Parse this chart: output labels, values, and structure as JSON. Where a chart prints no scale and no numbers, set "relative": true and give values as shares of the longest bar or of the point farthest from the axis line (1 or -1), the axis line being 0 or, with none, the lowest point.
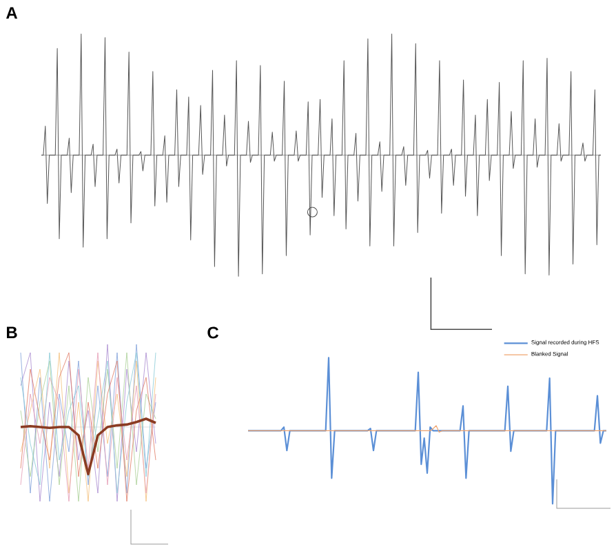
{
  "chart_data": [
    {
      "type": "line",
      "title": "A",
      "relative": true,
      "tick_labels": false,
      "categories": [
        null,
        null,
        null,
        null,
        null,
        null,
        null,
        null,
        null,
        null,
        null,
        null,
        null,
        null,
        null,
        null,
        null,
        null,
        null,
        null,
        null,
        null,
        null,
        null,
        null,
        null,
        null,
        null,
        null,
        null,
        null,
        null,
        null,
        null,
        null,
        null,
        null,
        null,
        null,
        null,
        null,
        null,
        null,
        null,
        null,
        null,
        null,
        null,
        null,
        null,
        null,
        null,
        null,
        null,
        null,
        null,
        null,
        null,
        null,
        null,
        null,
        null,
        null,
        null,
        null,
        null,
        null,
        null,
        null,
        null,
        null,
        null,
        null,
        null,
        null,
        null,
        null,
        null,
        null,
        null,
        null,
        null,
        null,
        null,
        null,
        null,
        null,
        null,
        null,
        null,
        null,
        null,
        null,
        null,
        null,
        null,
        null,
        null,
        null,
        null,
        null,
        null,
        null,
        null,
        null,
        null,
        null,
        null,
        null,
        null,
        null,
        null,
        null,
        null,
        null,
        null,
        null,
        null,
        null,
        null,
        null,
        null,
        null,
        null,
        null,
        null,
        null,
        null,
        null,
        null,
        null,
        null,
        null,
        null,
        null,
        null,
        null,
        null,
        null,
        null,
        null,
        null,
        null,
        null,
        null,
        null,
        null,
        null,
        null,
        null,
        null,
        null,
        null,
        null,
        null,
        null,
        null,
        null,
        null,
        null,
        null,
        null,
        null,
        null,
        null,
        null,
        null,
        null,
        null,
        null,
        null,
        null,
        null,
        null,
        null,
        null,
        null,
        null,
        null,
        null,
        null,
        null,
        null,
        null,
        null,
        null,
        null,
        null,
        null,
        null,
        null,
        null,
        null,
        null,
        null,
        null,
        null,
        null,
        null,
        null,
        null,
        null,
        null,
        null,
        null,
        null,
        null,
        null,
        null,
        null,
        null,
        null,
        null,
        null,
        null,
        null,
        null,
        null,
        null,
        null,
        null,
        null,
        null,
        null,
        null,
        null,
        null,
        null,
        null,
        null,
        null,
        null,
        null,
        null,
        null,
        null,
        null,
        null,
        null,
        null,
        null,
        null,
        null,
        null,
        null,
        null,
        null,
        null,
        null,
        null,
        null,
        null,
        null,
        null,
        null,
        null,
        null,
        null,
        null,
        null,
        null,
        null,
        null,
        null,
        null,
        null,
        null,
        null,
        null,
        null,
        null,
        null,
        null,
        null,
        null,
        null,
        null,
        null,
        null,
        null,
        null,
        null
      ],
      "series": [
        {
          "color": "#555555",
          "values": [
            0,
            0,
            0.24,
            -0.4,
            0,
            0,
            0,
            0,
            0.88,
            -0.69,
            0,
            0,
            0,
            0,
            0.14,
            -0.31,
            0,
            0,
            0,
            0,
            1.0,
            -0.76,
            0,
            0,
            0,
            0,
            0.09,
            -0.26,
            0,
            0,
            0,
            0,
            0.97,
            -0.69,
            0,
            0,
            0,
            0,
            0.05,
            -0.23,
            0,
            0,
            0,
            0,
            0.85,
            -0.56,
            0,
            0,
            0,
            0,
            0.03,
            -0.13,
            0,
            0,
            0,
            0,
            0.69,
            -0.42,
            0,
            0,
            0,
            0,
            0.16,
            -0.39,
            0,
            0,
            0,
            0,
            0.54,
            -0.26,
            0,
            0,
            0,
            0,
            0.48,
            -0.7,
            0,
            0,
            0,
            0,
            0.41,
            -0.16,
            0,
            0,
            0,
            0,
            0.7,
            -0.92,
            0,
            0,
            0,
            0,
            0.33,
            -0.09,
            0,
            0,
            0,
            0,
            0.78,
            -1.0,
            0,
            0,
            0,
            0,
            0.28,
            -0.06,
            0,
            0,
            0,
            0,
            0.74,
            -0.98,
            0,
            0,
            0,
            0,
            0.19,
            -0.05,
            0,
            0,
            0,
            0,
            0.61,
            -0.83,
            0,
            0,
            0,
            0,
            0.2,
            -0.05,
            0,
            0,
            0,
            0,
            0.44,
            -0.66,
            0,
            0,
            0,
            0,
            0.46,
            -0.35,
            0,
            0,
            0,
            0,
            0.3,
            -0.5,
            0,
            0,
            0,
            0,
            0.78,
            -0.61,
            0,
            0,
            0,
            0,
            0.18,
            -0.38,
            0,
            0,
            0,
            0,
            0.96,
            -0.75,
            0,
            0,
            0,
            0,
            0.11,
            -0.3,
            0,
            0,
            0,
            0,
            1.0,
            -0.75,
            0,
            0,
            0,
            0,
            0.07,
            -0.25,
            0,
            0,
            0,
            0,
            0.92,
            -0.64,
            0,
            0,
            0,
            0,
            0.04,
            -0.19,
            0,
            0,
            0,
            0,
            0.78,
            -0.48,
            0,
            0,
            0,
            0,
            0.05,
            -0.25,
            0,
            0,
            0,
            0,
            0.62,
            -0.34,
            0,
            0,
            0,
            0,
            0.33,
            -0.5,
            0,
            0,
            0,
            0,
            0.46,
            -0.21,
            0,
            0,
            0,
            0,
            0.6,
            -0.83,
            0,
            0,
            0,
            0,
            0.36,
            -0.11,
            0,
            0,
            0,
            0,
            0.78,
            -0.98,
            0,
            0,
            0,
            0,
            0.3,
            -0.1,
            0,
            0,
            0,
            0,
            0.8,
            -0.99,
            0,
            0,
            0,
            0,
            0.26,
            -0.05,
            0,
            0,
            0,
            0,
            0.69,
            -0.9,
            0,
            0,
            0,
            0,
            0.1,
            -0.05,
            0,
            0,
            0,
            0,
            0.54,
            -0.74,
            0,
            0
          ]
        }
      ]
    },
    {
      "type": "line",
      "title": "B",
      "relative": true,
      "tick_labels": false,
      "categories": [
        null,
        null,
        null,
        null,
        null,
        null,
        null,
        null,
        null,
        null,
        null,
        null,
        null,
        null,
        null
      ],
      "series": [
        {
          "color": "#7f9fd9",
          "values": [
            0.9,
            -0.8,
            0.6,
            -0.9,
            0.4,
            -0.3,
            0.8,
            -0.7,
            0.5,
            -0.6,
            0.9,
            -0.8,
            1.0,
            -0.5,
            0.3
          ]
        },
        {
          "color": "#a889cf",
          "values": [
            0.5,
            0.9,
            -0.9,
            0.3,
            -0.6,
            0.8,
            -0.4,
            0.2,
            -0.8,
            1.0,
            -0.9,
            0.7,
            -0.3,
            0.9,
            -0.2
          ]
        },
        {
          "color": "#f4bf7a",
          "values": [
            -0.3,
            0.2,
            0.7,
            -0.5,
            0.9,
            -0.8,
            0.3,
            -0.9,
            0.8,
            -0.2,
            0.4,
            -0.6,
            0.8,
            -0.9,
            0.6
          ]
        },
        {
          "color": "#a9cf95",
          "values": [
            0.2,
            -0.6,
            0.3,
            0.8,
            -0.7,
            0.5,
            -0.9,
            0.6,
            -0.3,
            0.7,
            -0.5,
            0.9,
            -0.7,
            0.4,
            0.1
          ]
        },
        {
          "color": "#e59ab4",
          "values": [
            -0.7,
            0.4,
            -0.2,
            0.6,
            0.3,
            -0.9,
            0.7,
            -0.5,
            0.9,
            -0.7,
            0.6,
            -0.4,
            0.5,
            -0.8,
            0.4
          ]
        },
        {
          "color": "#86c9d6",
          "values": [
            0.6,
            -0.2,
            -0.7,
            0.9,
            -0.4,
            0.2,
            0.5,
            -0.6,
            0.1,
            0.8,
            -0.8,
            0.3,
            0.9,
            -0.6,
            0.9
          ]
        },
        {
          "color": "#e07a63",
          "values": [
            -0.5,
            0.7,
            0.1,
            -0.4,
            0.6,
            0.9,
            -0.6,
            0.3,
            -0.5,
            0.4,
            0.8,
            -0.9,
            0.2,
            0.6,
            -0.4
          ]
        },
        {
          "color": "#8a3b22",
          "values": [
            0,
            0.01,
            0,
            -0.01,
            0,
            0,
            -0.1,
            -0.57,
            -0.1,
            0,
            0.02,
            0.03,
            0.06,
            0.1,
            0.05
          ]
        }
      ]
    },
    {
      "type": "line",
      "title": "C",
      "relative": true,
      "tick_labels": false,
      "legend": "top right",
      "categories": [
        null,
        null,
        null,
        null,
        null,
        null,
        null,
        null,
        null,
        null,
        null,
        null,
        null,
        null,
        null,
        null,
        null,
        null,
        null,
        null,
        null,
        null,
        null,
        null,
        null,
        null,
        null,
        null,
        null,
        null,
        null,
        null,
        null,
        null,
        null,
        null,
        null,
        null,
        null,
        null,
        null,
        null,
        null,
        null,
        null,
        null,
        null,
        null,
        null,
        null,
        null,
        null,
        null,
        null,
        null,
        null,
        null,
        null,
        null,
        null,
        null,
        null,
        null,
        null,
        null,
        null,
        null,
        null,
        null,
        null,
        null,
        null,
        null,
        null,
        null,
        null,
        null,
        null,
        null,
        null,
        null,
        null,
        null,
        null,
        null,
        null,
        null,
        null,
        null,
        null,
        null,
        null,
        null,
        null,
        null,
        null,
        null,
        null,
        null,
        null,
        null,
        null,
        null,
        null,
        null,
        null,
        null,
        null,
        null,
        null,
        null,
        null,
        null,
        null,
        null,
        null,
        null,
        null,
        null,
        null,
        null
      ],
      "series": [
        {
          "name": "Signal recorded during HFS",
          "color": "#5b8fd6",
          "values": [
            0,
            0,
            0,
            0,
            0,
            0,
            0,
            0,
            0,
            0,
            0,
            0,
            0.05,
            -0.27,
            0,
            0,
            0,
            0,
            0,
            0,
            0,
            0,
            0,
            0,
            0,
            0,
            0,
            1.0,
            -0.65,
            0,
            0,
            0,
            0,
            0,
            0,
            0,
            0,
            0,
            0,
            0,
            0,
            0.03,
            -0.27,
            0,
            0,
            0,
            0,
            0,
            0,
            0,
            0,
            0,
            0,
            0,
            0,
            0,
            0,
            0.8,
            -0.46,
            -0.1,
            -0.58,
            0.05,
            0,
            0,
            0,
            0,
            0,
            0,
            0,
            0,
            0,
            0,
            0.34,
            -0.65,
            0,
            0,
            0,
            0,
            0,
            0,
            0,
            0,
            0,
            0,
            0,
            0,
            0,
            0.61,
            -0.28,
            0,
            0,
            0,
            0,
            0,
            0,
            0,
            0,
            0,
            0,
            0,
            0,
            0.72,
            -1.0,
            0,
            0,
            0,
            0,
            0,
            0,
            0,
            0,
            0,
            0,
            0,
            0,
            0,
            0,
            0.48,
            -0.17,
            0,
            0
          ]
        },
        {
          "name": "Blanked Signal",
          "color": "#f0a46e",
          "values": [
            0,
            0,
            0,
            0,
            0,
            0,
            0,
            0,
            0,
            0,
            0,
            0,
            0,
            0,
            0,
            0,
            0,
            0,
            0,
            0,
            0,
            0,
            0,
            0,
            0,
            0,
            0,
            0,
            0,
            0,
            0,
            0,
            0,
            0,
            0,
            0,
            0,
            0,
            0,
            0,
            0,
            0,
            0,
            0,
            0,
            0,
            0,
            0,
            0,
            0,
            0,
            0,
            0,
            0,
            0,
            0,
            0,
            0,
            0,
            0,
            0,
            0,
            0.03,
            0.07,
            -0.02,
            0,
            0,
            0,
            0,
            0,
            0,
            0,
            0,
            0,
            0,
            0,
            0,
            0,
            0,
            0,
            0,
            0,
            0,
            0,
            0,
            0,
            0,
            0,
            0,
            0,
            0,
            0,
            0,
            0,
            0,
            0,
            0,
            0,
            0,
            0,
            0,
            0,
            0,
            0,
            0,
            0,
            0,
            0,
            0,
            0,
            0,
            0,
            0,
            0,
            0,
            0,
            0,
            0,
            0,
            0,
            0
          ]
        }
      ]
    }
  ]
}
